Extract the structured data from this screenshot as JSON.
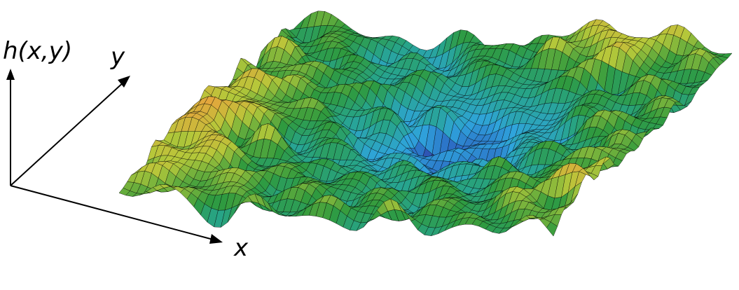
{
  "figure": {
    "axis_labels": {
      "height": "h(x,y)",
      "x": "x",
      "y": "y"
    }
  },
  "colors": {
    "low": "#3a2f8a",
    "deep": "#2b5fbf",
    "mid_blue": "#2fa4dc",
    "teal": "#27a48a",
    "green": "#2f9a3e",
    "yellow_green": "#b6c83a",
    "high": "#e8a23c",
    "mesh_line": "#000000"
  }
}
